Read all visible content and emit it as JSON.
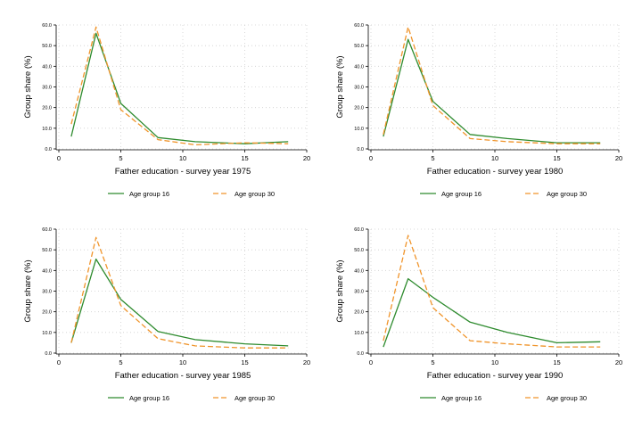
{
  "chart_data": [
    {
      "type": "line",
      "xlabel": "Father education - survey year 1975",
      "ylabel": "Group share (%)",
      "xlim": [
        0,
        20
      ],
      "ylim": [
        0,
        60
      ],
      "x_ticks": [
        "0",
        "5",
        "10",
        "15",
        "20"
      ],
      "y_ticks": [
        "0.0",
        "10.0",
        "20.0",
        "30.0",
        "40.0",
        "50.0",
        "60.0"
      ],
      "legend_position": "bottom",
      "series": [
        {
          "name": "Age group 16",
          "color": "#2e8b2e",
          "style": "solid",
          "x": [
            1,
            3,
            5,
            8,
            11,
            15,
            18.5
          ],
          "y": [
            6,
            56,
            22,
            5.5,
            3.5,
            2.5,
            3.5
          ]
        },
        {
          "name": "Age group 30",
          "color": "#f0942a",
          "style": "dashed",
          "x": [
            1,
            3,
            5,
            8,
            11,
            15,
            18.5
          ],
          "y": [
            12,
            59,
            19,
            4.5,
            2,
            3,
            2.5
          ]
        }
      ]
    },
    {
      "type": "line",
      "xlabel": "Father education - survey year 1980",
      "ylabel": "Group share (%)",
      "xlim": [
        0,
        20
      ],
      "ylim": [
        0,
        60
      ],
      "x_ticks": [
        "0",
        "5",
        "10",
        "15",
        "20"
      ],
      "y_ticks": [
        "0.0",
        "10.0",
        "20.0",
        "30.0",
        "40.0",
        "50.0",
        "60.0"
      ],
      "legend_position": "bottom",
      "series": [
        {
          "name": "Age group 16",
          "color": "#2e8b2e",
          "style": "solid",
          "x": [
            1,
            3,
            5,
            8,
            11,
            15,
            18.5
          ],
          "y": [
            6,
            53,
            23,
            7,
            5,
            3,
            3
          ]
        },
        {
          "name": "Age group 30",
          "color": "#f0942a",
          "style": "dashed",
          "x": [
            1,
            3,
            5,
            8,
            11,
            15,
            18.5
          ],
          "y": [
            7,
            59,
            21,
            5,
            3.5,
            2.5,
            2.5
          ]
        }
      ]
    },
    {
      "type": "line",
      "xlabel": "Father education - survey year 1985",
      "ylabel": "Group share (%)",
      "xlim": [
        0,
        20
      ],
      "ylim": [
        0,
        60
      ],
      "x_ticks": [
        "0",
        "5",
        "10",
        "15",
        "20"
      ],
      "y_ticks": [
        "0.0",
        "10.0",
        "20.0",
        "30.0",
        "40.0",
        "50.0",
        "60.0"
      ],
      "legend_position": "bottom",
      "series": [
        {
          "name": "Age group 16",
          "color": "#2e8b2e",
          "style": "solid",
          "x": [
            1,
            3,
            5,
            8,
            11,
            15,
            18.5
          ],
          "y": [
            5,
            45.5,
            26,
            10.5,
            6.5,
            4.5,
            3.5
          ]
        },
        {
          "name": "Age group 30",
          "color": "#f0942a",
          "style": "dashed",
          "x": [
            1,
            3,
            5,
            8,
            11,
            15,
            18.5
          ],
          "y": [
            5,
            56,
            23,
            7,
            3.5,
            2.5,
            2.5
          ]
        }
      ]
    },
    {
      "type": "line",
      "xlabel": "Father education - survey year 1990",
      "ylabel": "Group share (%)",
      "xlim": [
        0,
        20
      ],
      "ylim": [
        0,
        60
      ],
      "x_ticks": [
        "0",
        "5",
        "10",
        "15",
        "20"
      ],
      "y_ticks": [
        "0.0",
        "10.0",
        "20.0",
        "30.0",
        "40.0",
        "50.0",
        "60.0"
      ],
      "legend_position": "bottom",
      "series": [
        {
          "name": "Age group 16",
          "color": "#2e8b2e",
          "style": "solid",
          "x": [
            1,
            3,
            5,
            8,
            11,
            15,
            18.5
          ],
          "y": [
            3,
            36,
            27,
            15,
            10,
            5,
            5.5
          ]
        },
        {
          "name": "Age group 30",
          "color": "#f0942a",
          "style": "dashed",
          "x": [
            1,
            3,
            5,
            8,
            11,
            15,
            18.5
          ],
          "y": [
            6,
            57,
            22,
            6,
            4.5,
            3,
            3
          ]
        }
      ]
    }
  ]
}
